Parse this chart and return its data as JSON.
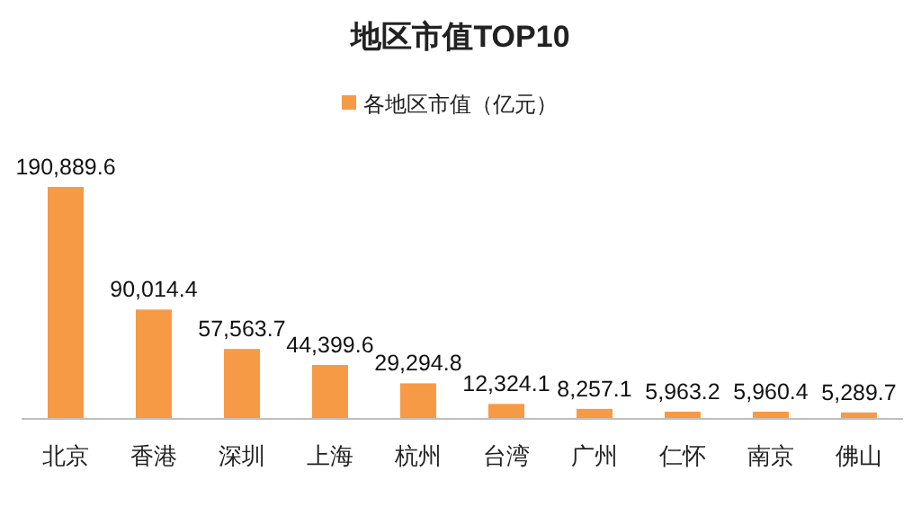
{
  "chart_data": {
    "type": "bar",
    "title": "地区市值TOP10",
    "categories": [
      "北京",
      "香港",
      "深圳",
      "上海",
      "杭州",
      "台湾",
      "广州",
      "仁怀",
      "南京",
      "佛山"
    ],
    "series": [
      {
        "name": "各地区市值（亿元）",
        "color": "#f79a45",
        "values": [
          190889.6,
          90014.4,
          57563.7,
          44399.6,
          29294.8,
          12324.1,
          8257.1,
          5963.2,
          5960.4,
          5289.7
        ],
        "value_labels": [
          "190,889.6",
          "90,014.4",
          "57,563.7",
          "44,399.6",
          "29,294.8",
          "12,324.1",
          "8,257.1",
          "5,963.2",
          "5,960.4",
          "5,289.7"
        ]
      }
    ],
    "legend": "top"
  }
}
